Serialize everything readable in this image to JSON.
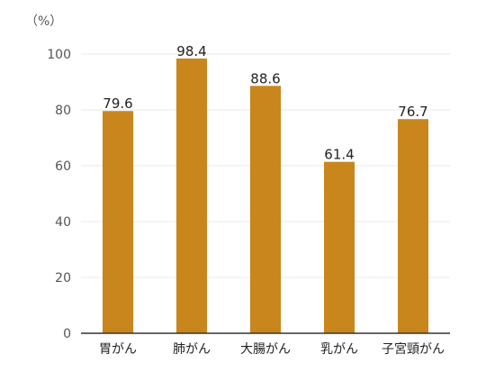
{
  "chart_data": {
    "type": "bar",
    "unit_label": "（%）",
    "categories": [
      "胃がん",
      "肺がん",
      "大腸がん",
      "乳がん",
      "子宮頸がん"
    ],
    "values": [
      79.6,
      98.4,
      88.6,
      61.4,
      76.7
    ],
    "value_labels": [
      "79.6",
      "98.4",
      "88.6",
      "61.4",
      "76.7"
    ],
    "y_ticks": [
      "0",
      "20",
      "40",
      "60",
      "80",
      "100"
    ],
    "ylim": [
      0,
      100
    ],
    "grid": true,
    "colors": {
      "bar": "#c8861d",
      "grid": "#e8e8e8",
      "axis": "#333333"
    }
  }
}
